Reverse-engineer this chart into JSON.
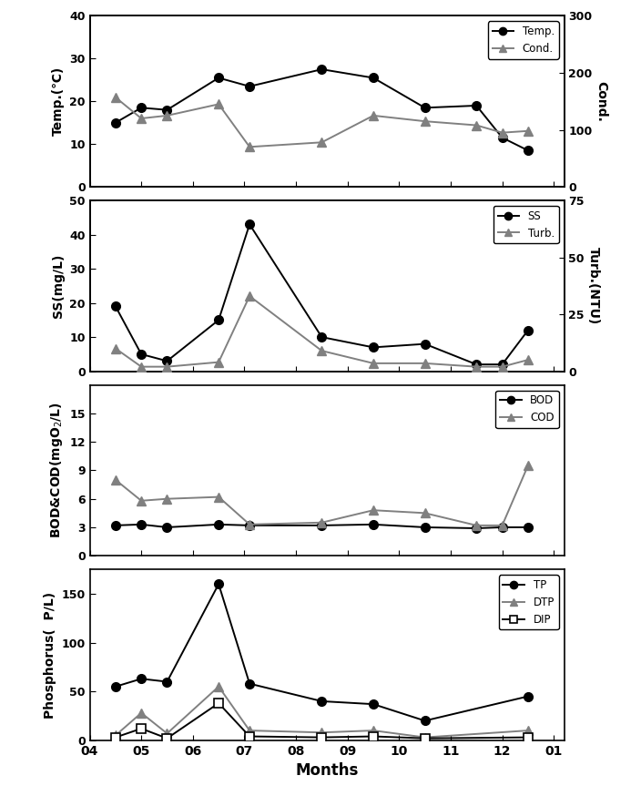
{
  "months": [
    4.5,
    5.0,
    5.5,
    6.5,
    7.1,
    8.5,
    9.5,
    10.5,
    11.5,
    12.0,
    12.5
  ],
  "x_ticks": [
    4,
    5,
    6,
    7,
    8,
    9,
    10,
    11,
    12,
    1
  ],
  "x_tick_labels": [
    "04",
    "05",
    "06",
    "07",
    "08",
    "09",
    "10",
    "11",
    "12",
    "01"
  ],
  "x_lim": [
    4.0,
    13.2
  ],
  "temp": [
    15.0,
    18.5,
    18.0,
    25.5,
    23.5,
    27.5,
    25.5,
    18.5,
    19.0,
    11.5,
    8.5
  ],
  "cond": [
    157,
    120,
    125,
    145,
    70,
    78,
    125,
    115,
    108,
    95,
    98
  ],
  "temp_ylim": [
    0,
    40
  ],
  "cond_ylim": [
    0,
    300
  ],
  "temp_yticks": [
    0,
    10,
    20,
    30,
    40
  ],
  "cond_yticks": [
    0,
    100,
    200,
    300
  ],
  "ss": [
    19.0,
    5.0,
    3.0,
    15.0,
    43.0,
    10.0,
    7.0,
    8.0,
    2.0,
    2.0,
    12.0
  ],
  "turb": [
    10.0,
    2.0,
    2.0,
    4.0,
    33.0,
    9.0,
    3.5,
    3.5,
    2.0,
    2.0,
    5.0
  ],
  "ss_ylim": [
    0,
    50
  ],
  "turb_ylim": [
    0,
    75
  ],
  "ss_yticks": [
    0,
    10,
    20,
    30,
    40,
    50
  ],
  "turb_yticks": [
    0,
    25,
    50,
    75
  ],
  "bod": [
    3.2,
    3.3,
    3.0,
    3.3,
    3.2,
    3.2,
    3.3,
    3.0,
    2.9,
    3.0,
    3.0
  ],
  "cod": [
    8.0,
    5.8,
    6.0,
    6.2,
    3.3,
    3.5,
    4.8,
    4.5,
    3.2,
    3.2,
    9.5
  ],
  "bod_ylim": [
    0,
    18
  ],
  "bod_yticks": [
    0,
    3,
    6,
    9,
    12,
    15
  ],
  "tp": [
    55.0,
    63.0,
    60.0,
    160.0,
    58.0,
    40.0,
    37.0,
    20.0,
    45.0
  ],
  "dtp": [
    5.0,
    28.0,
    7.0,
    55.0,
    10.0,
    8.0,
    10.0,
    3.0,
    10.0
  ],
  "dip": [
    3.0,
    12.0,
    2.0,
    38.0,
    4.0,
    3.0,
    4.0,
    2.0,
    3.0
  ],
  "tp_months": [
    4.5,
    5.0,
    5.5,
    6.5,
    7.1,
    8.5,
    9.5,
    10.5,
    12.5
  ],
  "phos_ylim": [
    0,
    175
  ],
  "phos_yticks": [
    0,
    50,
    100,
    150
  ],
  "lc": "#000000",
  "gray": "#808080",
  "markersize": 7,
  "linewidth": 1.4,
  "xlabel": "Months"
}
